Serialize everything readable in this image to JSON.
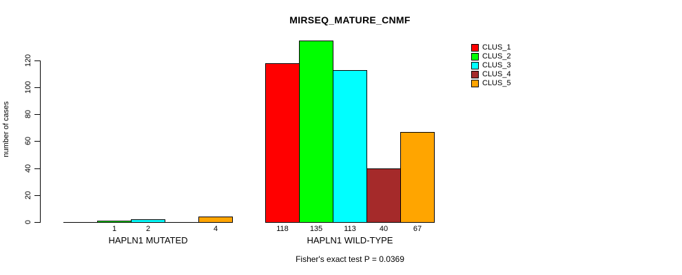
{
  "chart_data": {
    "type": "bar",
    "title": "MIRSEQ_MATURE_CNMF",
    "ylabel": "number of cases",
    "xlabel": "",
    "categories": [
      "HAPLN1 MUTATED",
      "HAPLN1 WILD-TYPE"
    ],
    "series": [
      {
        "name": "CLUS_1",
        "color": "#FF0000",
        "values": [
          0,
          118
        ]
      },
      {
        "name": "CLUS_2",
        "color": "#00FF00",
        "values": [
          1,
          135
        ]
      },
      {
        "name": "CLUS_3",
        "color": "#00FFFF",
        "values": [
          2,
          113
        ]
      },
      {
        "name": "CLUS_4",
        "color": "#A52A2A",
        "values": [
          0,
          40
        ]
      },
      {
        "name": "CLUS_5",
        "color": "#FFA500",
        "values": [
          4,
          67
        ]
      }
    ],
    "bar_value_labels": [
      [
        "",
        "1",
        "2",
        "",
        "4"
      ],
      [
        "118",
        "135",
        "113",
        "40",
        "67"
      ]
    ],
    "yticks": [
      0,
      20,
      40,
      60,
      80,
      100,
      120
    ],
    "ylim": [
      0,
      135
    ],
    "grid": false,
    "legend_position": "top-right",
    "annotation": "Fisher's exact test P = 0.0369"
  }
}
